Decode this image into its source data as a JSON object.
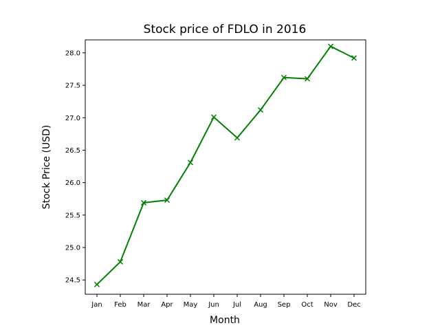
{
  "chart_data": {
    "type": "line",
    "title": "Stock price of FDLO in 2016",
    "xlabel": "Month",
    "ylabel": "Stock Price (USD)",
    "categories": [
      "Jan",
      "Feb",
      "Mar",
      "Apr",
      "May",
      "Jun",
      "Jul",
      "Aug",
      "Sep",
      "Oct",
      "Nov",
      "Dec"
    ],
    "series": [
      {
        "values": [
          24.43,
          24.78,
          25.69,
          25.73,
          26.31,
          27.01,
          26.69,
          27.12,
          27.62,
          27.6,
          28.1,
          27.92
        ],
        "color": "#008000",
        "marker": "x"
      }
    ],
    "ylim": [
      24.28,
      28.2
    ],
    "yticks": [
      "24.5",
      "25.0",
      "25.5",
      "26.0",
      "26.5",
      "27.0",
      "27.5",
      "28.0"
    ],
    "grid": false,
    "legend": "none"
  }
}
